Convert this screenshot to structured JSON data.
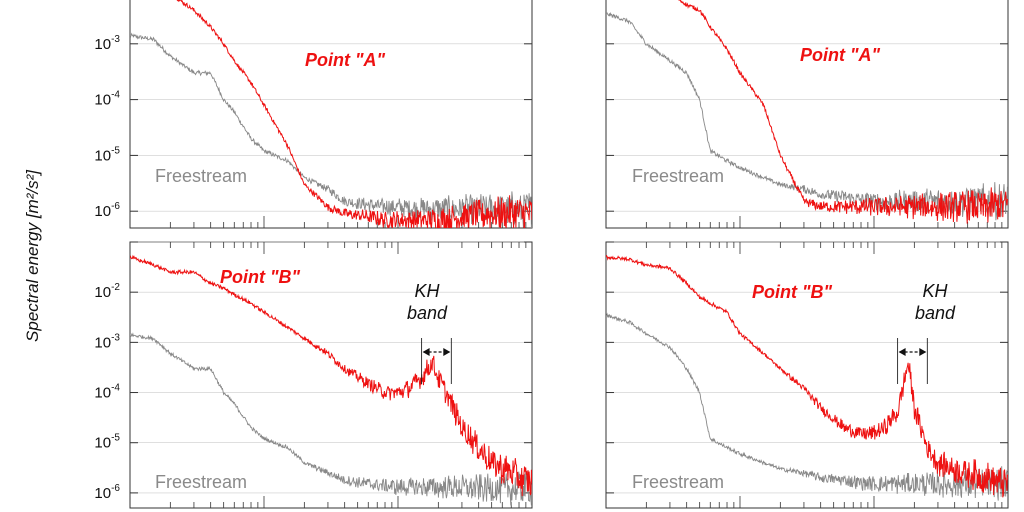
{
  "figure": {
    "ylabel": "Spectral energy [m²/s²]"
  },
  "colors": {
    "point_series": "#ee1111",
    "freestream_series": "#888888",
    "axes": "#333333",
    "grid": "#cccccc"
  },
  "chart_data": [
    {
      "type": "line",
      "panel": "top-left",
      "y_scale": "log",
      "x_scale": "log",
      "ylim": [
        5e-07,
        0.01
      ],
      "xlim": [
        1,
        1000
      ],
      "y_ticks": [
        {
          "base": "10",
          "exp": "-3",
          "value": 0.001
        },
        {
          "base": "10",
          "exp": "-4",
          "value": 0.0001
        },
        {
          "base": "10",
          "exp": "-5",
          "value": 1e-05
        },
        {
          "base": "10",
          "exp": "-6",
          "value": 1e-06
        }
      ],
      "series": [
        {
          "name": "Point \"A\"",
          "x": [
            1,
            1.5,
            2,
            3,
            4,
            5,
            6,
            8,
            10,
            15,
            20,
            30,
            40,
            60,
            80,
            100,
            150,
            200,
            300,
            500,
            700,
            1000
          ],
          "y": [
            0.02,
            0.012,
            0.008,
            0.004,
            0.002,
            0.001,
            0.0005,
            0.0002,
            8e-05,
            1.5e-05,
            3e-06,
            1.2e-06,
            9e-07,
            8e-07,
            7e-07,
            7e-07,
            7e-07,
            7e-07,
            8e-07,
            9e-07,
            9e-07,
            9e-07
          ]
        },
        {
          "name": "Freestream",
          "x": [
            1,
            1.5,
            2,
            3,
            4,
            5,
            6,
            8,
            10,
            15,
            20,
            30,
            40,
            60,
            80,
            100,
            150,
            200,
            300,
            500,
            700,
            1000
          ],
          "y": [
            0.0014,
            0.0012,
            0.0006,
            0.0003,
            0.0003,
            0.0001,
            6e-05,
            2e-05,
            1.2e-05,
            8e-06,
            4e-06,
            2.5e-06,
            1.5e-06,
            1.3e-06,
            1.2e-06,
            1.2e-06,
            1.1e-06,
            1.1e-06,
            1.1e-06,
            1.1e-06,
            1.1e-06,
            1.1e-06
          ]
        }
      ],
      "annotations": [
        {
          "text": "Point \"A\"",
          "color": "#ee1111"
        },
        {
          "text": "Freestream",
          "color": "#888888"
        }
      ]
    },
    {
      "type": "line",
      "panel": "top-right",
      "y_scale": "log",
      "x_scale": "log",
      "ylim": [
        5e-07,
        0.01
      ],
      "xlim": [
        1,
        1000
      ],
      "series": [
        {
          "name": "Point \"A\"",
          "x": [
            1,
            1.5,
            2,
            3,
            4,
            5,
            6,
            8,
            10,
            15,
            20,
            30,
            40,
            60,
            80,
            100,
            150,
            200,
            300,
            500,
            700,
            1000
          ],
          "y": [
            0.012,
            0.011,
            0.01,
            0.008,
            0.005,
            0.004,
            0.002,
            0.0008,
            0.0003,
            8e-05,
            1e-05,
            1.5e-06,
            1.2e-06,
            1.2e-06,
            1.2e-06,
            1.2e-06,
            1.2e-06,
            1.2e-06,
            1.2e-06,
            1.2e-06,
            1.2e-06,
            1.3e-06
          ]
        },
        {
          "name": "Freestream",
          "x": [
            1,
            1.5,
            2,
            3,
            4,
            5,
            6,
            8,
            10,
            15,
            20,
            30,
            40,
            60,
            80,
            100,
            150,
            200,
            300,
            500,
            700,
            1000
          ],
          "y": [
            0.0035,
            0.0025,
            0.001,
            0.0005,
            0.0003,
            0.0001,
            1.2e-05,
            8e-06,
            6e-06,
            4e-06,
            3e-06,
            2.5e-06,
            2e-06,
            1.8e-06,
            1.6e-06,
            1.5e-06,
            1.5e-06,
            1.5e-06,
            1.5e-06,
            1.5e-06,
            1.5e-06,
            1.5e-06
          ]
        }
      ],
      "annotations": [
        {
          "text": "Point \"A\"",
          "color": "#ee1111"
        },
        {
          "text": "Freestream",
          "color": "#888888"
        }
      ]
    },
    {
      "type": "line",
      "panel": "bottom-left",
      "y_scale": "log",
      "x_scale": "log",
      "ylim": [
        5e-07,
        0.1
      ],
      "xlim": [
        1,
        1000
      ],
      "y_ticks": [
        {
          "base": "10",
          "exp": "-2",
          "value": 0.01
        },
        {
          "base": "10",
          "exp": "-3",
          "value": 0.001
        },
        {
          "base": "10",
          "exp": "-4",
          "value": 0.0001
        },
        {
          "base": "10",
          "exp": "-5",
          "value": 1e-05
        },
        {
          "base": "10",
          "exp": "-6",
          "value": 1e-06
        }
      ],
      "series": [
        {
          "name": "Point \"B\"",
          "x": [
            1,
            1.5,
            2,
            3,
            4,
            5,
            6,
            8,
            10,
            15,
            20,
            30,
            40,
            60,
            80,
            100,
            120,
            150,
            180,
            200,
            250,
            300,
            400,
            500,
            700,
            1000
          ],
          "y": [
            0.05,
            0.035,
            0.025,
            0.025,
            0.015,
            0.012,
            0.009,
            0.006,
            0.004,
            0.002,
            0.0012,
            0.0006,
            0.0003,
            0.00015,
            0.0001,
            0.0001,
            0.00012,
            0.0002,
            0.0004,
            0.0002,
            6e-05,
            2e-05,
            8e-06,
            4e-06,
            2.5e-06,
            1.5e-06
          ]
        },
        {
          "name": "Freestream",
          "x": [
            1,
            1.5,
            2,
            3,
            4,
            5,
            6,
            8,
            10,
            15,
            20,
            30,
            40,
            60,
            80,
            100,
            150,
            200,
            300,
            500,
            700,
            1000
          ],
          "y": [
            0.0014,
            0.0012,
            0.0006,
            0.0003,
            0.0003,
            0.0001,
            6e-05,
            2e-05,
            1.2e-05,
            8e-06,
            4e-06,
            2.5e-06,
            1.8e-06,
            1.5e-06,
            1.4e-06,
            1.3e-06,
            1.3e-06,
            1.3e-06,
            1.3e-06,
            1.2e-06,
            1.2e-06,
            1.2e-06
          ]
        }
      ],
      "annotations": [
        {
          "text": "Point \"B\"",
          "color": "#ee1111"
        },
        {
          "text": "Freestream",
          "color": "#888888"
        },
        {
          "text": "KH band",
          "lines": [
            "KH",
            "band"
          ],
          "color": "#111111",
          "x_range": [
            150,
            250
          ]
        }
      ]
    },
    {
      "type": "line",
      "panel": "bottom-right",
      "y_scale": "log",
      "x_scale": "log",
      "ylim": [
        5e-07,
        0.1
      ],
      "xlim": [
        1,
        1000
      ],
      "series": [
        {
          "name": "Point \"B\"",
          "x": [
            1,
            1.5,
            2,
            3,
            4,
            5,
            6,
            8,
            10,
            15,
            20,
            30,
            40,
            60,
            80,
            100,
            120,
            150,
            180,
            200,
            250,
            300,
            400,
            500,
            700,
            1000
          ],
          "y": [
            0.05,
            0.045,
            0.035,
            0.03,
            0.015,
            0.008,
            0.006,
            0.004,
            0.0015,
            0.0006,
            0.0003,
            0.00012,
            5e-05,
            2e-05,
            1.5e-05,
            1.5e-05,
            2e-05,
            4e-05,
            0.0004,
            5e-05,
            8e-06,
            4e-06,
            3e-06,
            2.5e-06,
            2e-06,
            1.5e-06
          ]
        },
        {
          "name": "Freestream",
          "x": [
            1,
            1.5,
            2,
            3,
            4,
            5,
            6,
            8,
            10,
            15,
            20,
            30,
            40,
            60,
            80,
            100,
            150,
            200,
            300,
            500,
            700,
            1000
          ],
          "y": [
            0.0035,
            0.0025,
            0.0015,
            0.0008,
            0.0003,
            0.0001,
            1.2e-05,
            8e-06,
            6e-06,
            4e-06,
            3e-06,
            2.5e-06,
            2e-06,
            1.8e-06,
            1.6e-06,
            1.5e-06,
            1.5e-06,
            1.5e-06,
            1.5e-06,
            1.5e-06,
            1.5e-06,
            1.5e-06
          ]
        }
      ],
      "annotations": [
        {
          "text": "Point \"B\"",
          "color": "#ee1111"
        },
        {
          "text": "Freestream",
          "color": "#888888"
        },
        {
          "text": "KH band",
          "lines": [
            "KH",
            "band"
          ],
          "color": "#111111",
          "x_range": [
            150,
            250
          ]
        }
      ]
    }
  ]
}
